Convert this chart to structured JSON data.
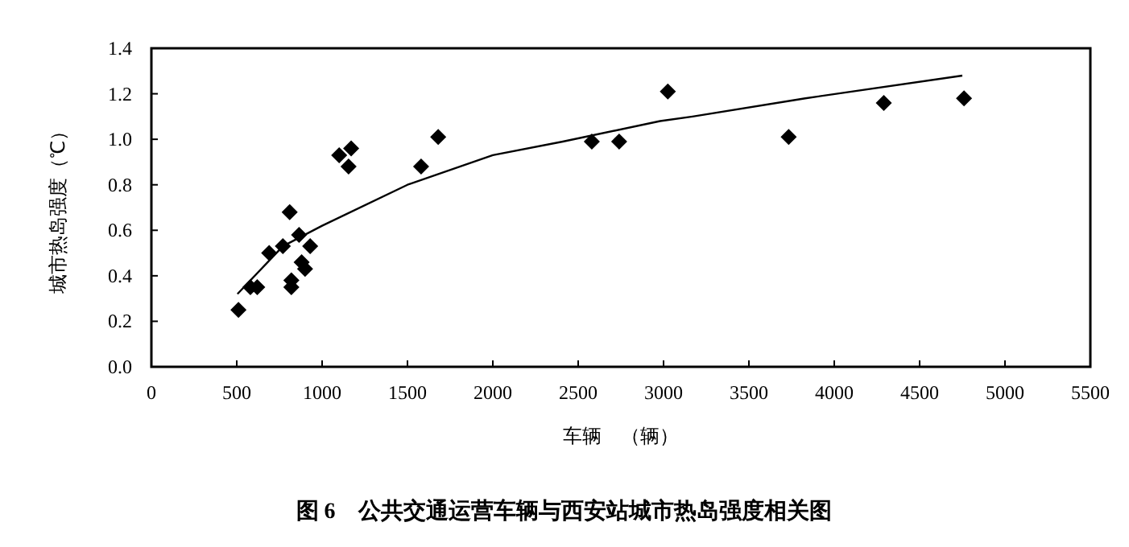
{
  "chart_data": {
    "type": "scatter",
    "title": "图 6　公共交通运营车辆与西安站城市热岛强度相关图",
    "xlabel": "车辆　（辆）",
    "ylabel": "城市热岛强度（℃）",
    "xlim": [
      0,
      5500
    ],
    "xticks": [
      0,
      500,
      1000,
      1500,
      2000,
      2500,
      3000,
      3500,
      4000,
      4500,
      5000,
      5500
    ],
    "ylim": [
      0,
      1.4
    ],
    "yticks": [
      {
        "value": 0,
        "label": "0.0"
      },
      0.2,
      0.4,
      0.6,
      0.8,
      {
        "value": 1,
        "label": "1.0"
      },
      1.2,
      1.4
    ],
    "grid": false,
    "series": [
      {
        "marker": "diamond",
        "color": "#000000",
        "x": [
          510,
          580,
          620,
          690,
          770,
          810,
          865,
          820,
          820,
          880,
          900,
          930,
          1100,
          1170,
          1155,
          1580,
          1680,
          2580,
          2740,
          3025,
          3733,
          4290,
          4760
        ],
        "values": [
          0.25,
          0.35,
          0.35,
          0.5,
          0.53,
          0.68,
          0.58,
          0.38,
          0.35,
          0.46,
          0.43,
          0.53,
          0.93,
          0.96,
          0.88,
          0.88,
          1.01,
          0.99,
          0.99,
          1.21,
          1.01,
          1.16,
          1.18
        ]
      },
      {
        "type": "line",
        "marker": "none",
        "line_style": "solid",
        "color": "#000000",
        "x": [
          504,
          770,
          1000,
          1500,
          2000,
          2410,
          2980,
          3170,
          3830,
          4750
        ],
        "values": [
          0.32,
          0.53,
          0.62,
          0.8,
          0.93,
          0.99,
          1.08,
          1.1,
          1.18,
          1.28
        ]
      }
    ]
  }
}
